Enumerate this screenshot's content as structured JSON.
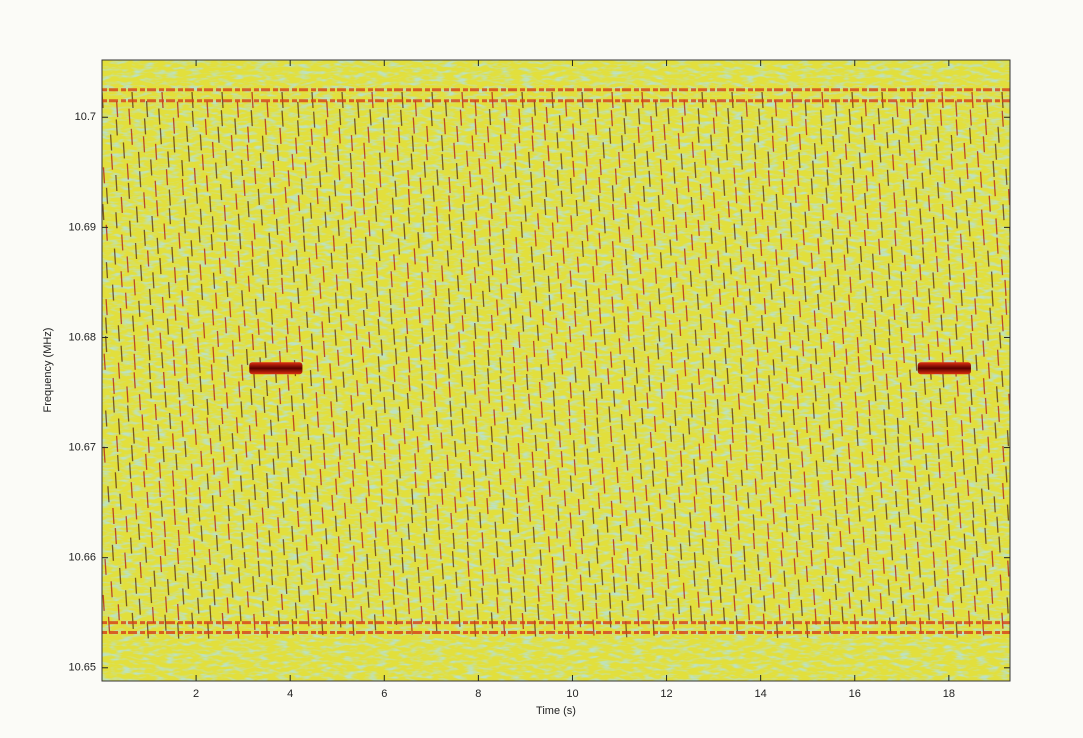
{
  "chart_data": {
    "type": "spectrogram",
    "xlabel": "Time (s)",
    "ylabel": "Frequency (MHz)",
    "xlim": [
      0,
      19.3
    ],
    "ylim": [
      10.6488,
      10.7052
    ],
    "xticks": [
      2,
      4,
      6,
      8,
      10,
      12,
      14,
      16,
      18
    ],
    "yticks": [
      10.65,
      10.66,
      10.67,
      10.68,
      10.69,
      10.7
    ],
    "signals": [
      {
        "start": 3.13,
        "end": 4.26,
        "frequency": 10.6772
      },
      {
        "start": 17.34,
        "end": 18.47,
        "frequency": 10.6772
      }
    ],
    "bands": [
      10.7025,
      10.7015,
      10.6541,
      10.6532
    ]
  }
}
